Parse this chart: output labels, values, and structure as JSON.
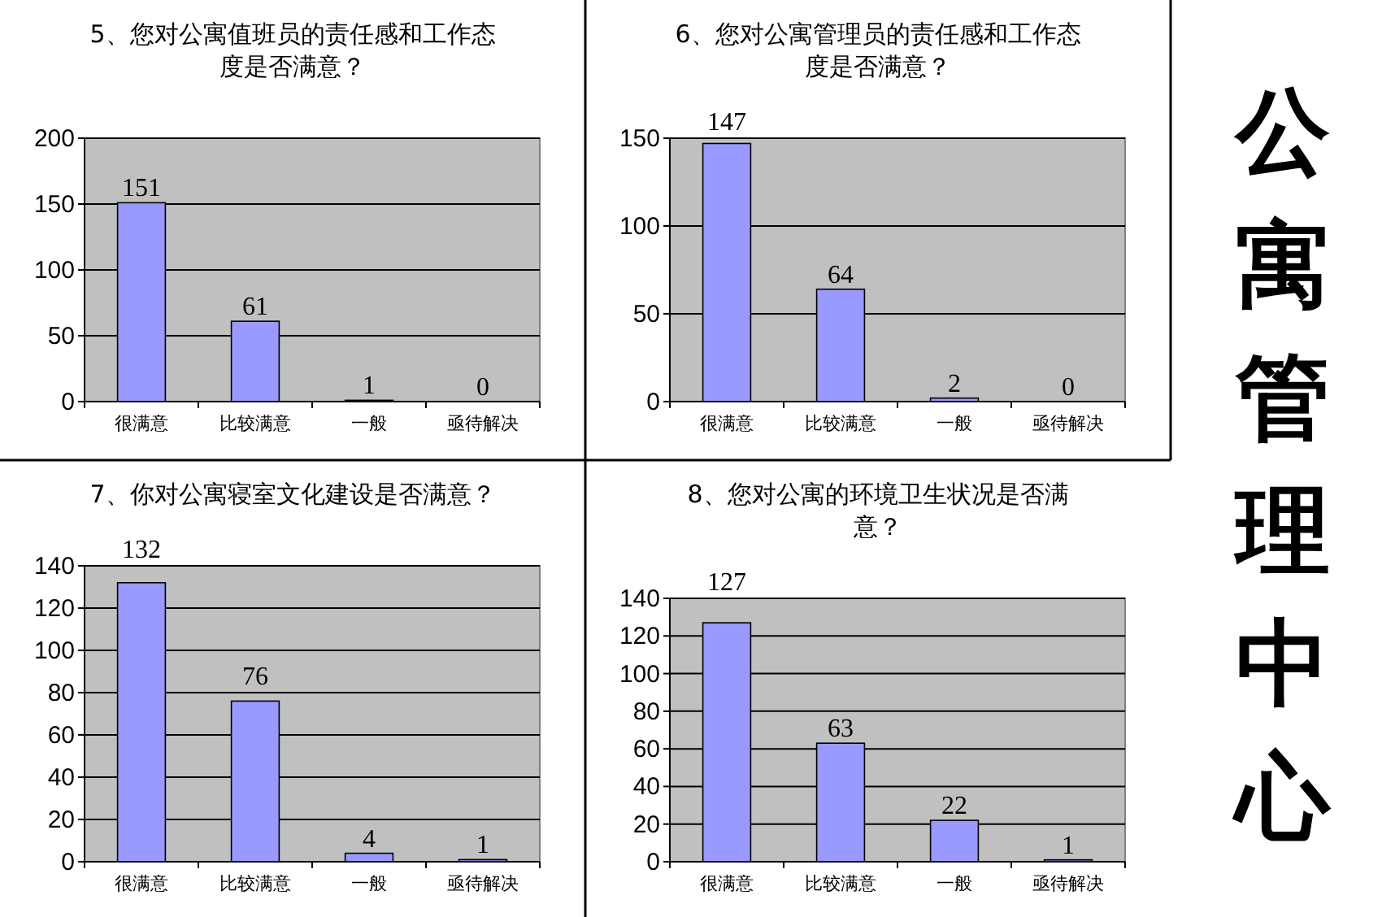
{
  "chart_data": [
    {
      "type": "bar",
      "title": "5、您对公寓值班员的责任感和工作态度是否满意？",
      "categories": [
        "很满意",
        "比较满意",
        "一般",
        "亟待解决"
      ],
      "values": [
        151,
        61,
        1,
        0
      ],
      "color": "#9999ff",
      "ylim": [
        0,
        200
      ],
      "yticks": [
        0,
        50,
        100,
        150,
        200
      ],
      "grid": "y",
      "data_labels": true
    },
    {
      "type": "bar",
      "title": "6、您对公寓管理员的责任感和工作态度是否满意？",
      "categories": [
        "很满意",
        "比较满意",
        "一般",
        "亟待解决"
      ],
      "values": [
        147,
        64,
        2,
        0
      ],
      "color": "#9999ff",
      "ylim": [
        0,
        150
      ],
      "yticks": [
        0,
        50,
        100,
        150
      ],
      "grid": "y",
      "data_labels": true
    },
    {
      "type": "bar",
      "title": "7、你对公寓寝室文化建设是否满意？",
      "categories": [
        "很满意",
        "比较满意",
        "一般",
        "亟待解决"
      ],
      "values": [
        132,
        76,
        4,
        1
      ],
      "color": "#9999ff",
      "ylim": [
        0,
        140
      ],
      "yticks": [
        0,
        20,
        40,
        60,
        80,
        100,
        120,
        140
      ],
      "grid": "y",
      "data_labels": true
    },
    {
      "type": "bar",
      "title": "8、您对公寓的环境卫生状况是否满意？",
      "categories": [
        "很满意",
        "比较满意",
        "一般",
        "亟待解决"
      ],
      "values": [
        127,
        63,
        22,
        1
      ],
      "color": "#9999ff",
      "ylim": [
        0,
        140
      ],
      "yticks": [
        0,
        20,
        40,
        60,
        80,
        100,
        120,
        140
      ],
      "grid": "y",
      "data_labels": true
    },
    {
      "type": "other",
      "title": "公寓管理中心"
    }
  ]
}
